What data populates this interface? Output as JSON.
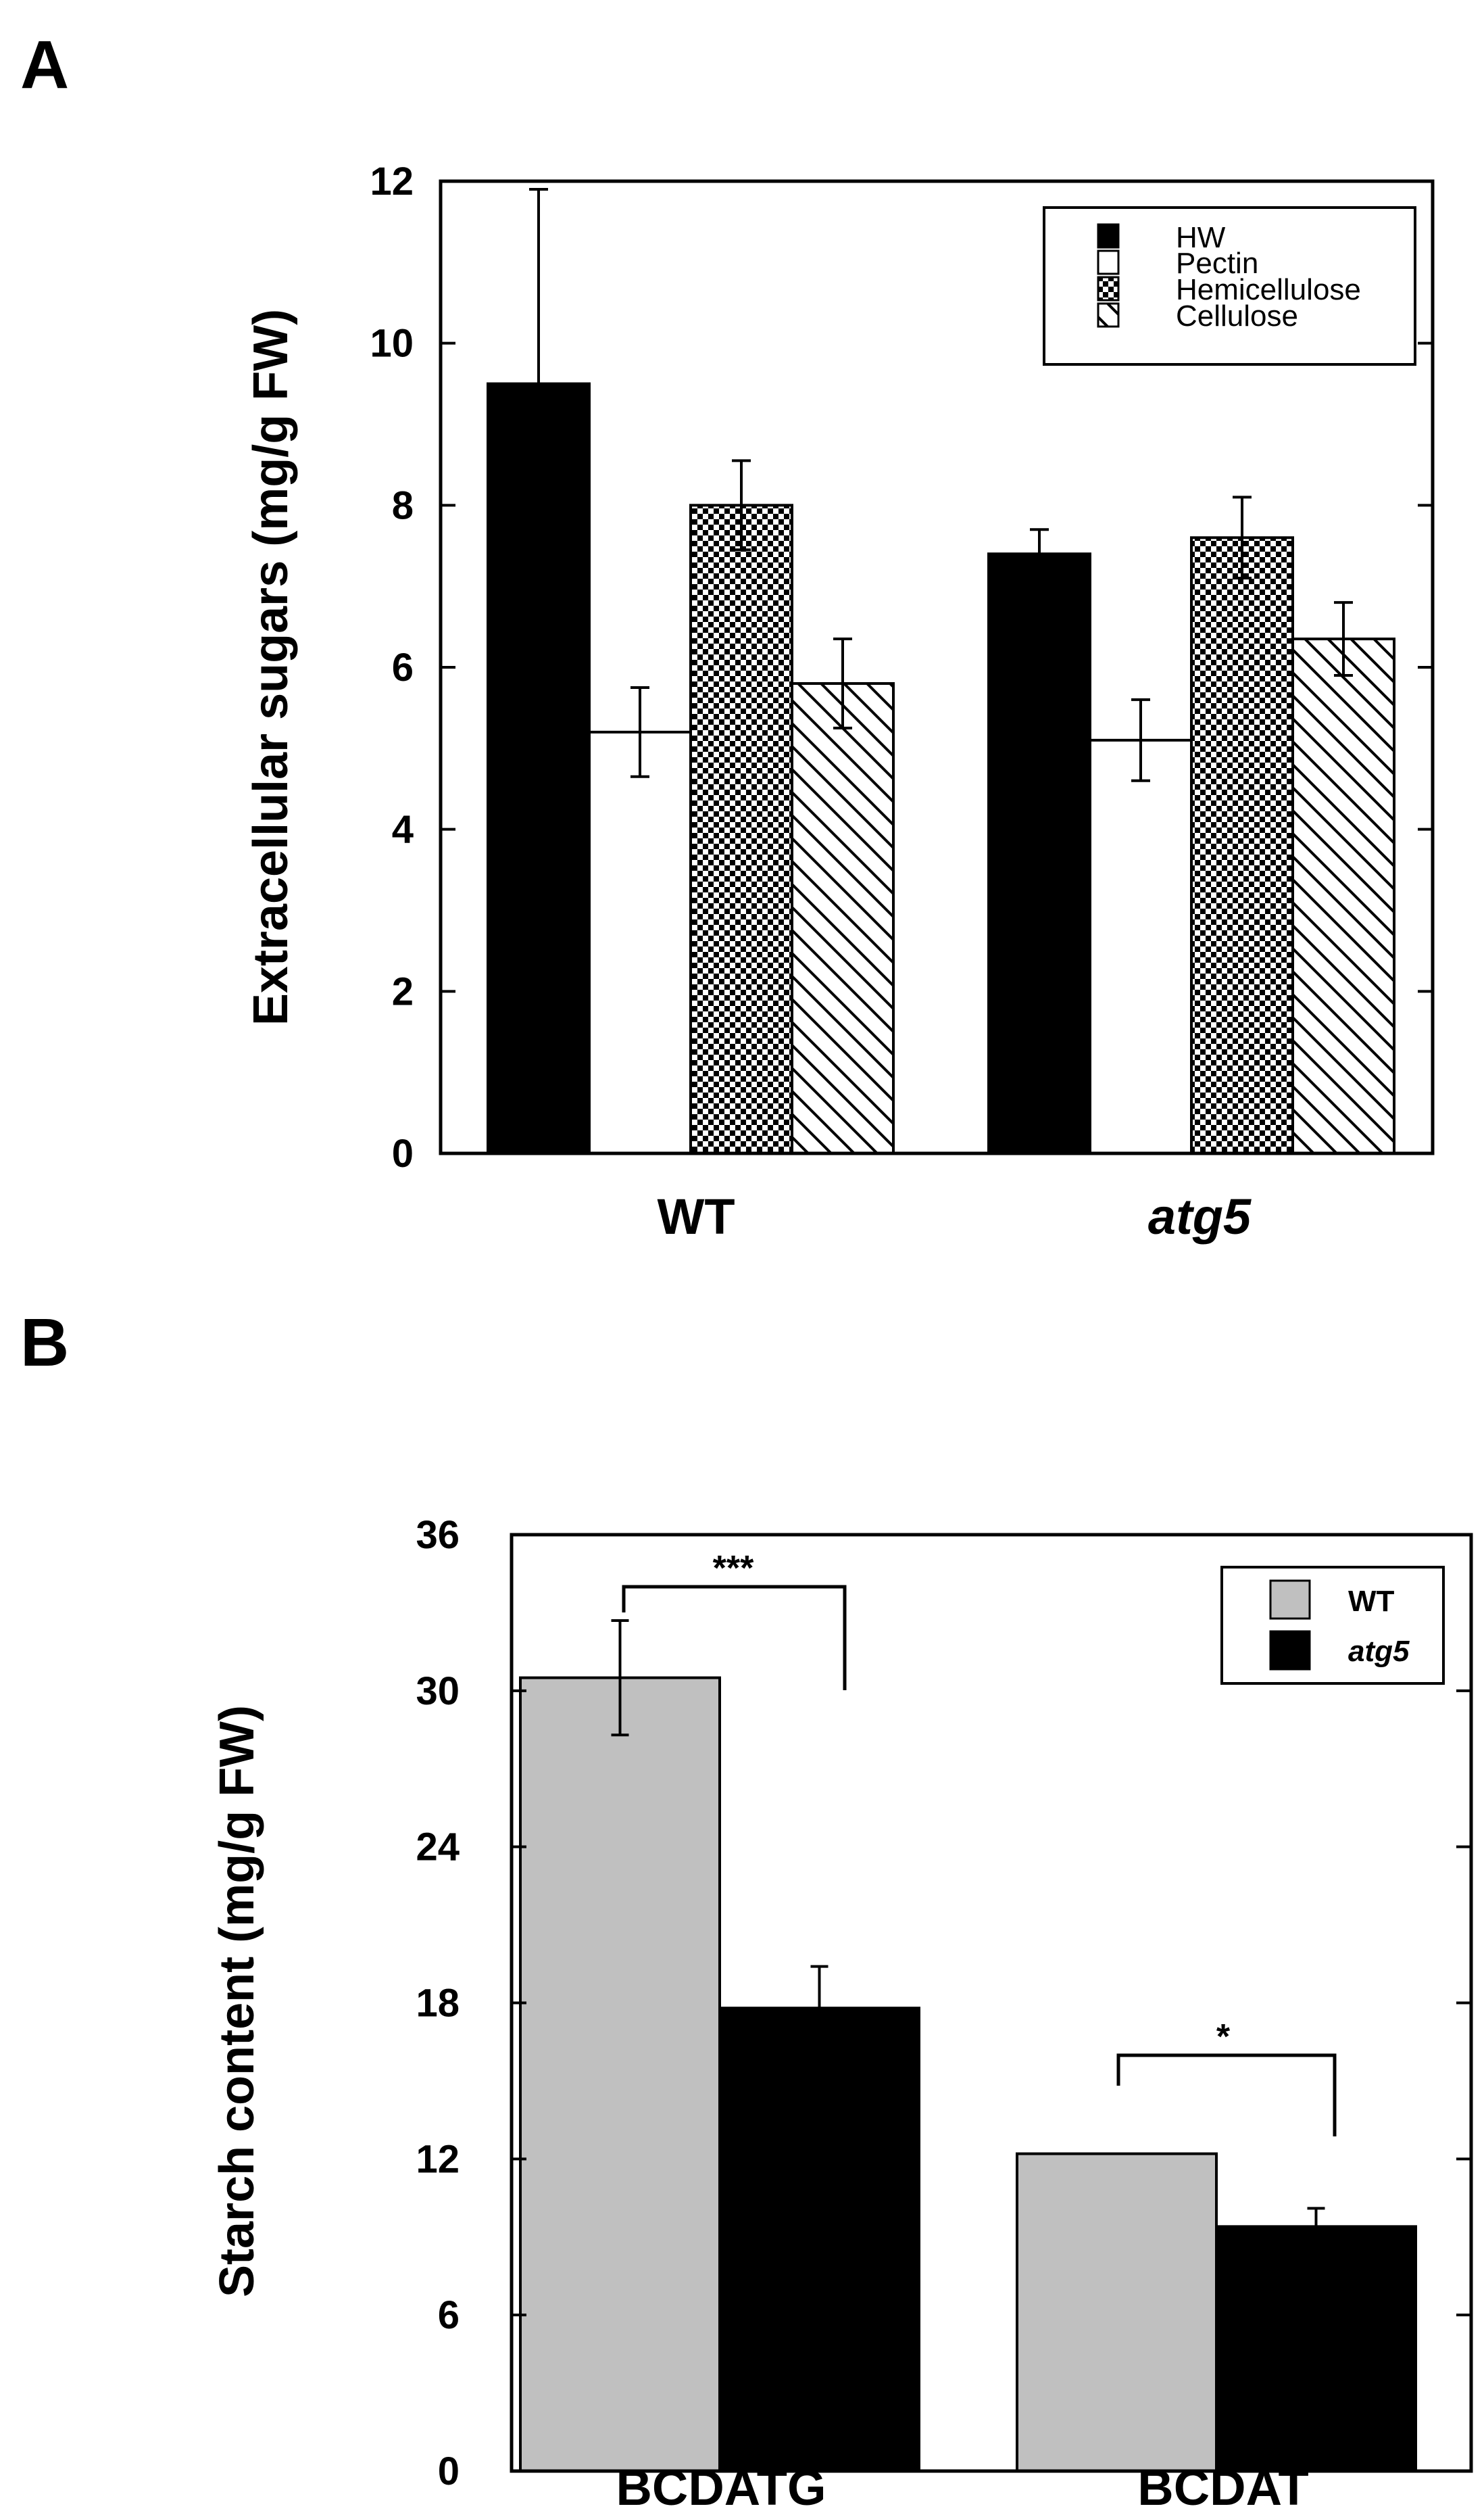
{
  "panels": [
    {
      "letter": "A",
      "chart_data": {
        "type": "bar",
        "title": "",
        "xlabel": "",
        "ylabel": "Extracellular sugars (mg/g FW)",
        "ylim": [
          0,
          12
        ],
        "yticks": [
          "0",
          "2",
          "4",
          "6",
          "8",
          "10",
          "12"
        ],
        "categories": [
          "WT",
          "atg5"
        ],
        "category_italic": [
          false,
          true
        ],
        "series": [
          {
            "name": "HW",
            "values": [
              9.5,
              7.4
            ],
            "errors": [
              2.4,
              0.3
            ],
            "fill": "black"
          },
          {
            "name": "Pectin",
            "values": [
              5.2,
              5.1
            ],
            "errors": [
              0.55,
              0.5
            ],
            "fill": "white"
          },
          {
            "name": "Hemicellulose",
            "values": [
              8.0,
              7.6
            ],
            "errors": [
              0.55,
              0.5
            ],
            "fill": "checker"
          },
          {
            "name": "Cellulose",
            "values": [
              5.8,
              6.35
            ],
            "errors": [
              0.55,
              0.45
            ],
            "fill": "hatch"
          }
        ],
        "legend_position": "top-right",
        "grid": false
      }
    },
    {
      "letter": "B",
      "chart_data": {
        "type": "bar",
        "title": "",
        "xlabel": "",
        "ylabel": "Starch content (mg/g FW)",
        "ylim": [
          0,
          36
        ],
        "yticks": [
          "0",
          "6",
          "12",
          "18",
          "24",
          "30",
          "36"
        ],
        "categories": [
          "BCDATG",
          "BCDAT"
        ],
        "category_italic": [
          false,
          false
        ],
        "series": [
          {
            "name": "WT",
            "values": [
              30.5,
              12.2
            ],
            "errors": [
              2.2,
              0
            ],
            "fill": "#c0c0c0",
            "italic": false
          },
          {
            "name": "atg5",
            "values": [
              17.8,
              9.4
            ],
            "errors": [
              1.6,
              0.7
            ],
            "fill": "black",
            "italic": true
          }
        ],
        "significance": [
          {
            "category": "BCDATG",
            "label": "***"
          },
          {
            "category": "BCDAT",
            "label": "*"
          }
        ],
        "legend_position": "top-right",
        "grid": false
      }
    }
  ]
}
